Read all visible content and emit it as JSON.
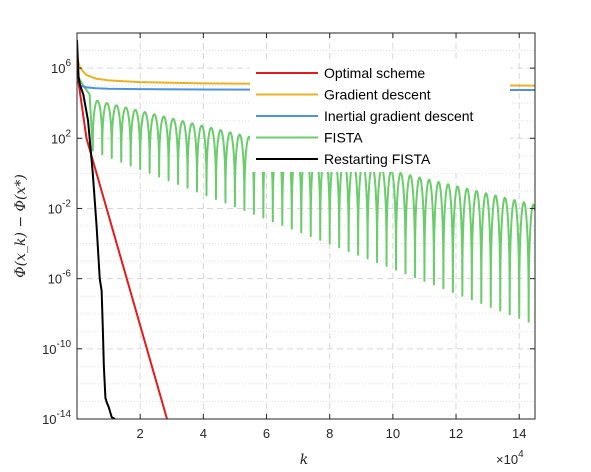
{
  "chart_data": {
    "type": "line",
    "title": "",
    "xlabel": "k",
    "ylabel": "Φ(x_k) − Φ(x*)",
    "x_multiplier_label": "×10",
    "x_multiplier_exponent": "4",
    "xlim": [
      0,
      14.5
    ],
    "x_scale_factor": 10000,
    "yscale": "log",
    "ylim_exponent": [
      -14,
      8
    ],
    "x_tick_values": [
      2,
      4,
      6,
      8,
      10,
      12,
      14
    ],
    "x_tick_labels": [
      "2",
      "4",
      "6",
      "8",
      "10",
      "12",
      "14"
    ],
    "y_tick_exponents": [
      -14,
      -10,
      -6,
      -2,
      2,
      6
    ],
    "y_tick_labels": [
      {
        "base": "10",
        "exp": "-14"
      },
      {
        "base": "10",
        "exp": "-10"
      },
      {
        "base": "10",
        "exp": "-6"
      },
      {
        "base": "10",
        "exp": "-2"
      },
      {
        "base": "10",
        "exp": "2"
      },
      {
        "base": "10",
        "exp": "6"
      }
    ],
    "grid": "major-dashed, minor-dotted",
    "legend_position": "top-right",
    "series": [
      {
        "name": "Optimal scheme",
        "color": "#e41a1c",
        "x": [
          0,
          0.3,
          2.85
        ],
        "y_log10": [
          5.8,
          2.0,
          -14
        ]
      },
      {
        "name": "Gradient descent",
        "color": "#edb120",
        "x": [
          0,
          0.1,
          0.3,
          0.6,
          1.0,
          2.0,
          4.0,
          8.0,
          14.5
        ],
        "y_log10": [
          6.6,
          6.0,
          5.6,
          5.4,
          5.3,
          5.2,
          5.13,
          5.07,
          5.0
        ]
      },
      {
        "name": "Inertial gradient descent",
        "color": "#4b93e0",
        "x": [
          0,
          0.1,
          0.3,
          0.6,
          1.0,
          2.0,
          4.0,
          8.0,
          14.5
        ],
        "y_log10": [
          5.3,
          5.0,
          4.9,
          4.85,
          4.82,
          4.8,
          4.78,
          4.76,
          4.75
        ]
      },
      {
        "name": "FISTA",
        "color": "#6bcc6b",
        "envelope_x": [
          0.5,
          14.5
        ],
        "envelope_upper_log10": [
          4.2,
          -1.8
        ],
        "envelope_lower_log10": [
          1.3,
          -8.6
        ],
        "oscillation_period_x": 0.3
      },
      {
        "name": "Restarting FISTA",
        "color": "#000000",
        "x": [
          0,
          0.05,
          0.1,
          0.2,
          0.35,
          0.5,
          0.62,
          0.72,
          0.78,
          0.82,
          0.85,
          0.9,
          0.95,
          1.0,
          1.05,
          1.1,
          1.2
        ],
        "y_log10": [
          7.6,
          5.5,
          5.0,
          4.5,
          3.0,
          0.0,
          -3.0,
          -6.0,
          -6.7,
          -9.0,
          -11.0,
          -12.8,
          -13.1,
          -13.3,
          -13.6,
          -13.9,
          -14.0
        ]
      }
    ]
  }
}
